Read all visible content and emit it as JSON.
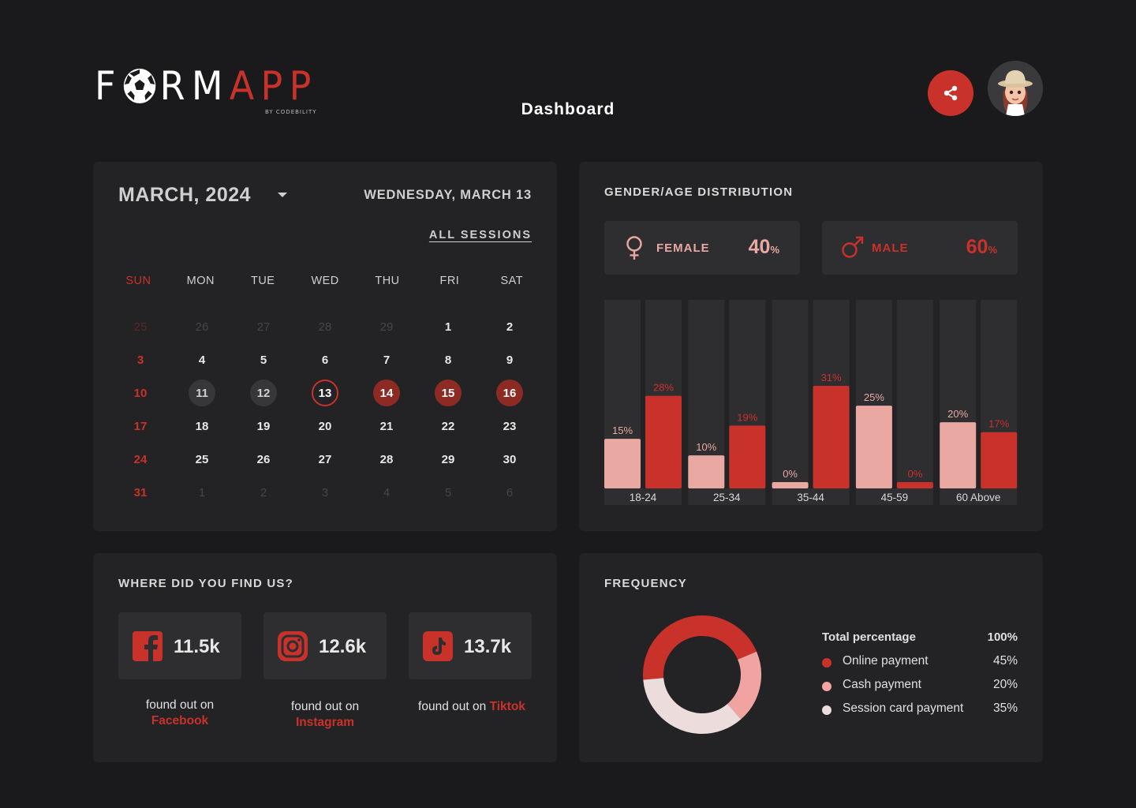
{
  "header": {
    "logo_left": "F",
    "logo_mid": "RM",
    "logo_right": "APP",
    "logo_sub": "BY CODEBILITY",
    "title": "Dashboard"
  },
  "calendar": {
    "month": "MARCH, 2024",
    "today": "WEDNESDAY, MARCH 13",
    "all_sessions": "ALL SESSIONS",
    "weekdays": [
      "SUN",
      "MON",
      "TUE",
      "WED",
      "THU",
      "FRI",
      "SAT"
    ],
    "days": [
      {
        "d": "25",
        "s": "muted"
      },
      {
        "d": "26",
        "s": "muted"
      },
      {
        "d": "27",
        "s": "muted"
      },
      {
        "d": "28",
        "s": "muted"
      },
      {
        "d": "29",
        "s": "muted"
      },
      {
        "d": "1",
        "s": ""
      },
      {
        "d": "2",
        "s": ""
      },
      {
        "d": "3",
        "s": ""
      },
      {
        "d": "4",
        "s": ""
      },
      {
        "d": "5",
        "s": ""
      },
      {
        "d": "6",
        "s": ""
      },
      {
        "d": "7",
        "s": ""
      },
      {
        "d": "8",
        "s": ""
      },
      {
        "d": "9",
        "s": ""
      },
      {
        "d": "10",
        "s": ""
      },
      {
        "d": "11",
        "s": "grey"
      },
      {
        "d": "12",
        "s": "grey"
      },
      {
        "d": "13",
        "s": "ring"
      },
      {
        "d": "14",
        "s": "red"
      },
      {
        "d": "15",
        "s": "red"
      },
      {
        "d": "16",
        "s": "red"
      },
      {
        "d": "17",
        "s": ""
      },
      {
        "d": "18",
        "s": ""
      },
      {
        "d": "19",
        "s": ""
      },
      {
        "d": "20",
        "s": ""
      },
      {
        "d": "21",
        "s": ""
      },
      {
        "d": "22",
        "s": ""
      },
      {
        "d": "23",
        "s": ""
      },
      {
        "d": "24",
        "s": ""
      },
      {
        "d": "25",
        "s": ""
      },
      {
        "d": "26",
        "s": ""
      },
      {
        "d": "27",
        "s": ""
      },
      {
        "d": "28",
        "s": ""
      },
      {
        "d": "29",
        "s": ""
      },
      {
        "d": "30",
        "s": ""
      },
      {
        "d": "31",
        "s": ""
      },
      {
        "d": "1",
        "s": "muted"
      },
      {
        "d": "2",
        "s": "muted"
      },
      {
        "d": "3",
        "s": "muted"
      },
      {
        "d": "4",
        "s": "muted"
      },
      {
        "d": "5",
        "s": "muted"
      },
      {
        "d": "6",
        "s": "muted"
      }
    ]
  },
  "gender": {
    "title": "GENDER/AGE DISTRIBUTION",
    "female_label": "FEMALE",
    "female_pct": "40",
    "male_label": "MALE",
    "male_pct": "60",
    "pct_sign": "%"
  },
  "chart_data": {
    "type": "bar",
    "categories": [
      "18-24",
      "25-34",
      "35-44",
      "45-59",
      "60 Above"
    ],
    "series": [
      {
        "name": "Female",
        "values": [
          15,
          10,
          0,
          25,
          20
        ],
        "labels": [
          "15%",
          "10%",
          "0%",
          "25%",
          "20%"
        ],
        "color": "#eaa8a2"
      },
      {
        "name": "Male",
        "values": [
          28,
          19,
          31,
          0,
          17
        ],
        "labels": [
          "28%",
          "19%",
          "31%",
          "0%",
          "17%"
        ],
        "color": "#c9322b"
      }
    ],
    "ylim": [
      0,
      57
    ]
  },
  "find": {
    "title": "WHERE DID YOU FIND US?",
    "prefix": "found out on",
    "sources": [
      {
        "name": "Facebook",
        "count": "11.5k"
      },
      {
        "name": "Instagram",
        "count": "12.6k"
      },
      {
        "name": "Tiktok",
        "count": "13.7k"
      }
    ]
  },
  "frequency": {
    "title": "FREQUENCY",
    "total_label": "Total percentage",
    "total_value": "100%",
    "items": [
      {
        "name": "Online payment",
        "value": "45%",
        "pct": 45,
        "color": "#c9322b"
      },
      {
        "name": "Cash payment",
        "value": "20%",
        "pct": 20,
        "color": "#f1a3a1"
      },
      {
        "name": "Session card payment",
        "value": "35%",
        "pct": 35,
        "color": "#ecdcdc"
      }
    ]
  },
  "colors": {
    "accent": "#c9322b",
    "pink": "#eaa8a2",
    "card": "#232325",
    "background": "#1a1a1c"
  }
}
